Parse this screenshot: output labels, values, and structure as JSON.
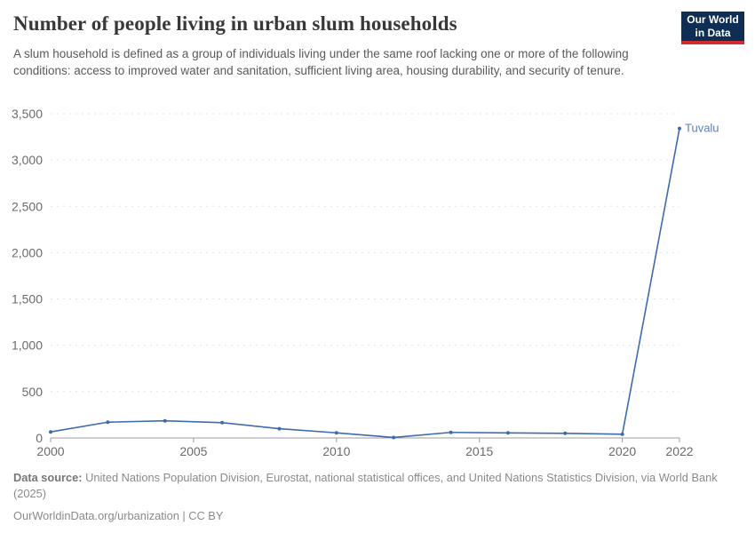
{
  "header": {
    "title": "Number of people living in urban slum households",
    "subtitle": "A slum household is defined as a group of individuals living under the same roof lacking one or more of the following conditions: access to improved water and sanitation, sufficient living area, housing durability, and security of tenure.",
    "logo": {
      "line1": "Our World",
      "line2": "in Data",
      "bg_color": "#0e2e54",
      "accent_color": "#d42b2f"
    }
  },
  "chart_data": {
    "type": "line",
    "title": "Number of people living in urban slum households",
    "xlabel": "",
    "ylabel": "",
    "xlim": [
      2000,
      2022
    ],
    "ylim": [
      0,
      3500
    ],
    "grid": "horizontal-dashed",
    "x_ticks": [
      2000,
      2005,
      2010,
      2015,
      2020,
      2022
    ],
    "y_ticks": [
      0,
      500,
      1000,
      1500,
      2000,
      2500,
      3000,
      3500
    ],
    "series": [
      {
        "name": "Tuvalu",
        "color": "#3e6bae",
        "label_color": "#5b7ec5",
        "x": [
          2000,
          2002,
          2004,
          2006,
          2008,
          2010,
          2012,
          2014,
          2016,
          2018,
          2020,
          2022
        ],
        "values": [
          65,
          170,
          185,
          165,
          100,
          55,
          5,
          60,
          55,
          50,
          40,
          3340
        ]
      }
    ],
    "entity_label": "Tuvalu"
  },
  "footer": {
    "datasource_label": "Data source:",
    "datasource_text": "United Nations Population Division, Eurostat, national statistical offices, and United Nations Statistics Division, via World Bank (2025)",
    "link_line": "OurWorldinData.org/urbanization | CC BY"
  }
}
